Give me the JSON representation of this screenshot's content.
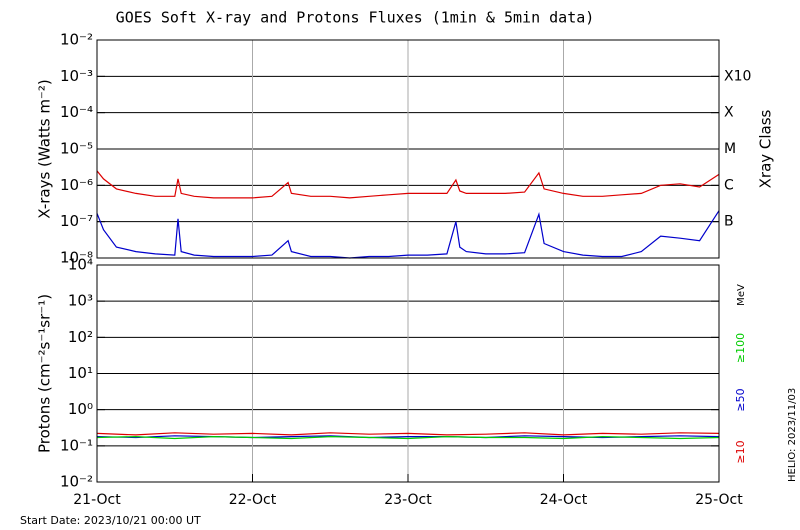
{
  "chart_data": [
    {
      "type": "line",
      "title": "GOES Soft X-ray and Protons Fluxes   (1min & 5min data)",
      "y_label": "X-rays (Watts m⁻²)",
      "y2_label": "Xray Class",
      "ylog": true,
      "grid": true,
      "xlim": [
        "2023-10-21 00:00",
        "2023-10-25 00:00"
      ],
      "vgrid": [
        "2023-10-22 00:00",
        "2023-10-23 00:00",
        "2023-10-24 00:00"
      ],
      "ylim": [
        1e-08,
        0.01
      ],
      "yticks": [
        {
          "value": 1e-08,
          "label": "10⁻⁸"
        },
        {
          "value": 1e-07,
          "label": "10⁻⁷"
        },
        {
          "value": 1e-06,
          "label": "10⁻⁶"
        },
        {
          "value": 1e-05,
          "label": "10⁻⁵"
        },
        {
          "value": 0.0001,
          "label": "10⁻⁴"
        },
        {
          "value": 0.001,
          "label": "10⁻³"
        },
        {
          "value": 0.01,
          "label": "10⁻²"
        }
      ],
      "y2lim": [
        1e-08,
        0.01
      ],
      "y2ticks": [
        {
          "value": 1e-07,
          "label": "B"
        },
        {
          "value": 1e-06,
          "label": "C"
        },
        {
          "value": 1e-05,
          "label": "M"
        },
        {
          "value": 0.0001,
          "label": "X"
        },
        {
          "value": 0.001,
          "label": "X10"
        }
      ],
      "x": [
        "2023-10-21 00:00",
        "2023-10-21 01:00",
        "2023-10-21 03:00",
        "2023-10-21 06:00",
        "2023-10-21 09:00",
        "2023-10-21 12:00",
        "2023-10-21 12:30",
        "2023-10-21 13:00",
        "2023-10-21 15:00",
        "2023-10-21 18:00",
        "2023-10-21 21:00",
        "2023-10-22 00:00",
        "2023-10-22 03:00",
        "2023-10-22 05:30",
        "2023-10-22 06:00",
        "2023-10-22 09:00",
        "2023-10-22 12:00",
        "2023-10-22 15:00",
        "2023-10-22 18:00",
        "2023-10-22 21:00",
        "2023-10-23 00:00",
        "2023-10-23 03:00",
        "2023-10-23 06:00",
        "2023-10-23 07:24",
        "2023-10-23 08:00",
        "2023-10-23 09:00",
        "2023-10-23 12:00",
        "2023-10-23 15:00",
        "2023-10-23 18:00",
        "2023-10-23 20:12",
        "2023-10-23 21:00",
        "2023-10-24 00:00",
        "2023-10-24 03:00",
        "2023-10-24 06:00",
        "2023-10-24 09:00",
        "2023-10-24 12:00",
        "2023-10-24 15:00",
        "2023-10-24 18:00",
        "2023-10-24 21:00",
        "2023-10-25 00:00"
      ],
      "series": [
        {
          "color": "#0000cc",
          "values": [
            1.7e-07,
            6e-08,
            2e-08,
            1.5e-08,
            1.3e-08,
            1.2e-08,
            1.2e-07,
            1.5e-08,
            1.2e-08,
            1.1e-08,
            1.1e-08,
            1.1e-08,
            1.2e-08,
            3e-08,
            1.5e-08,
            1.1e-08,
            1.1e-08,
            1e-08,
            1.1e-08,
            1.1e-08,
            1.2e-08,
            1.2e-08,
            1.3e-08,
            1e-07,
            2e-08,
            1.5e-08,
            1.3e-08,
            1.3e-08,
            1.4e-08,
            1.6e-07,
            2.5e-08,
            1.5e-08,
            1.2e-08,
            1.1e-08,
            1.1e-08,
            1.5e-08,
            4e-08,
            3.5e-08,
            3e-08,
            2e-07
          ]
        },
        {
          "color": "#dd0000",
          "values": [
            2.5e-06,
            1.5e-06,
            8e-07,
            6e-07,
            5e-07,
            5e-07,
            1.5e-06,
            6e-07,
            5e-07,
            4.5e-07,
            4.5e-07,
            4.5e-07,
            5e-07,
            1.2e-06,
            6e-07,
            5e-07,
            5e-07,
            4.5e-07,
            5e-07,
            5.5e-07,
            6e-07,
            6e-07,
            6e-07,
            1.4e-06,
            7e-07,
            6e-07,
            6e-07,
            6e-07,
            6.5e-07,
            2.2e-06,
            8e-07,
            6e-07,
            5e-07,
            5e-07,
            5.5e-07,
            6e-07,
            1e-06,
            1.1e-06,
            9e-07,
            2e-06
          ]
        }
      ]
    },
    {
      "type": "line",
      "y_label": "Protons (cm⁻²s⁻¹sr⁻¹)",
      "ylog": true,
      "grid": true,
      "legend_title": "MeV",
      "reference_line": 10,
      "xlim": [
        "2023-10-21 00:00",
        "2023-10-25 00:00"
      ],
      "xticks": [
        {
          "value": "2023-10-21 00:00",
          "label": "21-Oct"
        },
        {
          "value": "2023-10-22 00:00",
          "label": "22-Oct"
        },
        {
          "value": "2023-10-23 00:00",
          "label": "23-Oct"
        },
        {
          "value": "2023-10-24 00:00",
          "label": "24-Oct"
        },
        {
          "value": "2023-10-25 00:00",
          "label": "25-Oct"
        }
      ],
      "ylim": [
        0.01,
        10000.0
      ],
      "yticks": [
        {
          "value": 0.01,
          "label": "10⁻²"
        },
        {
          "value": 0.1,
          "label": "10⁻¹"
        },
        {
          "value": 1,
          "label": "10⁰"
        },
        {
          "value": 10,
          "label": "10¹"
        },
        {
          "value": 100,
          "label": "10²"
        },
        {
          "value": 1000,
          "label": "10³"
        },
        {
          "value": 10000,
          "label": "10⁴"
        }
      ],
      "x": [
        "2023-10-21 00:00",
        "2023-10-21 06:00",
        "2023-10-21 12:00",
        "2023-10-21 18:00",
        "2023-10-22 00:00",
        "2023-10-22 06:00",
        "2023-10-22 12:00",
        "2023-10-22 18:00",
        "2023-10-23 00:00",
        "2023-10-23 06:00",
        "2023-10-23 12:00",
        "2023-10-23 18:00",
        "2023-10-24 00:00",
        "2023-10-24 06:00",
        "2023-10-24 12:00",
        "2023-10-24 18:00",
        "2023-10-25 00:00"
      ],
      "series": [
        {
          "name": "≥50",
          "color": "#0000cc",
          "values": [
            0.18,
            0.17,
            0.19,
            0.18,
            0.17,
            0.18,
            0.19,
            0.17,
            0.18,
            0.18,
            0.17,
            0.19,
            0.18,
            0.17,
            0.18,
            0.19,
            0.18
          ]
        },
        {
          "name": "≥100",
          "color": "#00cc00",
          "values": [
            0.17,
            0.18,
            0.16,
            0.18,
            0.17,
            0.16,
            0.18,
            0.17,
            0.16,
            0.18,
            0.17,
            0.17,
            0.16,
            0.18,
            0.17,
            0.16,
            0.17
          ]
        },
        {
          "name": "≥10",
          "color": "#dd0000",
          "values": [
            0.22,
            0.2,
            0.23,
            0.21,
            0.22,
            0.2,
            0.23,
            0.21,
            0.22,
            0.2,
            0.21,
            0.23,
            0.2,
            0.22,
            0.21,
            0.23,
            0.22
          ]
        }
      ]
    }
  ],
  "footer": {
    "start_date": "Start Date: 2023/10/21 00:00 UT",
    "credit": "HELIO: 2023/11/03"
  }
}
